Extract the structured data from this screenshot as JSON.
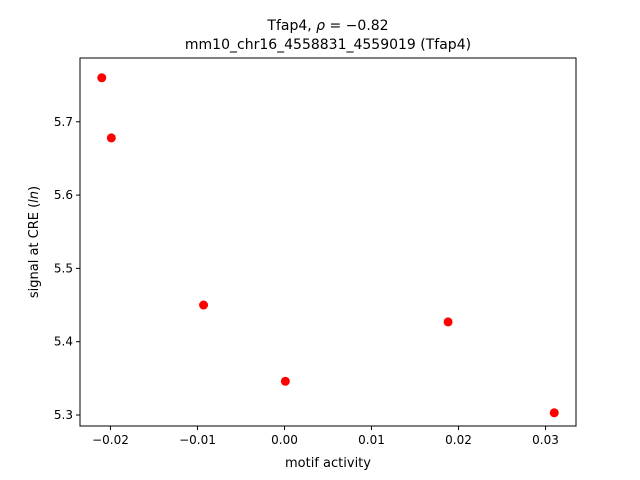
{
  "chart_data": {
    "type": "scatter",
    "title_line1_prefix": "Tfap4, ",
    "title_rho": "ρ",
    "title_line1_value": " = −0.82",
    "title_line2": "mm10_chr16_4558831_4559019 (Tfap4)",
    "xlabel": "motif activity",
    "ylabel_prefix": "signal at CRE (",
    "ylabel_italic": "ln",
    "ylabel_suffix": ")",
    "xlim": [
      -0.0235,
      0.0335
    ],
    "ylim": [
      5.285,
      5.787
    ],
    "xticks": [
      -0.02,
      -0.01,
      0.0,
      0.01,
      0.02,
      0.03
    ],
    "xtick_labels": [
      "−0.02",
      "−0.01",
      "0.00",
      "0.01",
      "0.02",
      "0.03"
    ],
    "yticks": [
      5.3,
      5.4,
      5.5,
      5.6,
      5.7
    ],
    "ytick_labels": [
      "5.3",
      "5.4",
      "5.5",
      "5.6",
      "5.7"
    ],
    "grid": false,
    "marker_color": "#ff0000",
    "points": [
      {
        "x": -0.021,
        "y": 5.76
      },
      {
        "x": -0.0199,
        "y": 5.678
      },
      {
        "x": -0.0093,
        "y": 5.45
      },
      {
        "x": 0.0001,
        "y": 5.346
      },
      {
        "x": 0.0188,
        "y": 5.427
      },
      {
        "x": 0.031,
        "y": 5.303
      }
    ]
  }
}
